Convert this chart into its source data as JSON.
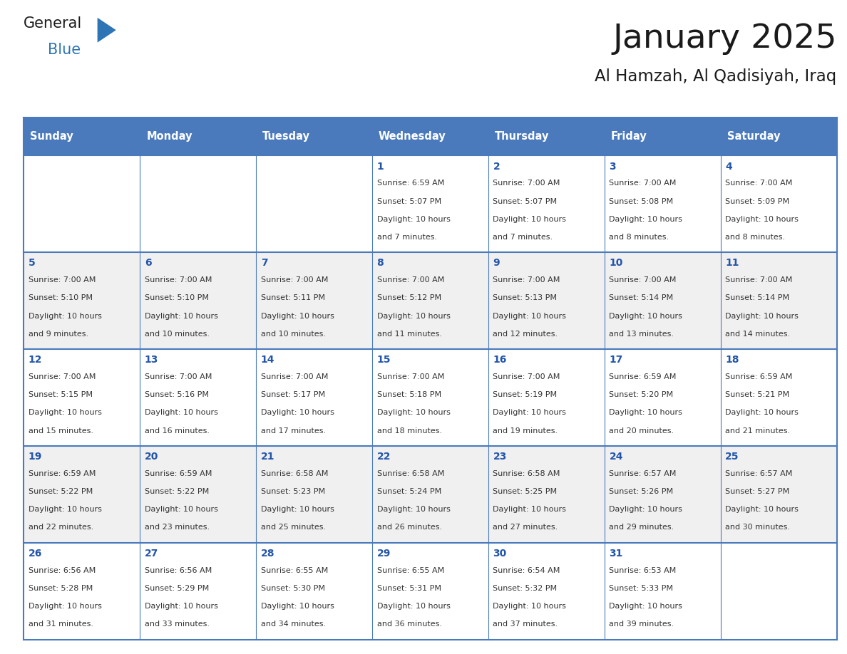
{
  "title": "January 2025",
  "subtitle": "Al Hamzah, Al Qadisiyah, Iraq",
  "header_color": "#4a7abc",
  "header_text_color": "#FFFFFF",
  "cell_bg_row0": "#FFFFFF",
  "cell_bg_row1": "#F0F0F0",
  "day_names": [
    "Sunday",
    "Monday",
    "Tuesday",
    "Wednesday",
    "Thursday",
    "Friday",
    "Saturday"
  ],
  "title_color": "#1a1a1a",
  "subtitle_color": "#1a1a1a",
  "text_color": "#333333",
  "day_num_color": "#2255aa",
  "line_color": "#4a7abc",
  "logo_text_color": "#1a1a1a",
  "logo_blue_color": "#2E75B6",
  "calendar": [
    [
      {
        "day": "",
        "sunrise": "",
        "sunset": "",
        "daylight": ""
      },
      {
        "day": "",
        "sunrise": "",
        "sunset": "",
        "daylight": ""
      },
      {
        "day": "",
        "sunrise": "",
        "sunset": "",
        "daylight": ""
      },
      {
        "day": "1",
        "sunrise": "6:59 AM",
        "sunset": "5:07 PM",
        "daylight": "10 hours\nand 7 minutes."
      },
      {
        "day": "2",
        "sunrise": "7:00 AM",
        "sunset": "5:07 PM",
        "daylight": "10 hours\nand 7 minutes."
      },
      {
        "day": "3",
        "sunrise": "7:00 AM",
        "sunset": "5:08 PM",
        "daylight": "10 hours\nand 8 minutes."
      },
      {
        "day": "4",
        "sunrise": "7:00 AM",
        "sunset": "5:09 PM",
        "daylight": "10 hours\nand 8 minutes."
      }
    ],
    [
      {
        "day": "5",
        "sunrise": "7:00 AM",
        "sunset": "5:10 PM",
        "daylight": "10 hours\nand 9 minutes."
      },
      {
        "day": "6",
        "sunrise": "7:00 AM",
        "sunset": "5:10 PM",
        "daylight": "10 hours\nand 10 minutes."
      },
      {
        "day": "7",
        "sunrise": "7:00 AM",
        "sunset": "5:11 PM",
        "daylight": "10 hours\nand 10 minutes."
      },
      {
        "day": "8",
        "sunrise": "7:00 AM",
        "sunset": "5:12 PM",
        "daylight": "10 hours\nand 11 minutes."
      },
      {
        "day": "9",
        "sunrise": "7:00 AM",
        "sunset": "5:13 PM",
        "daylight": "10 hours\nand 12 minutes."
      },
      {
        "day": "10",
        "sunrise": "7:00 AM",
        "sunset": "5:14 PM",
        "daylight": "10 hours\nand 13 minutes."
      },
      {
        "day": "11",
        "sunrise": "7:00 AM",
        "sunset": "5:14 PM",
        "daylight": "10 hours\nand 14 minutes."
      }
    ],
    [
      {
        "day": "12",
        "sunrise": "7:00 AM",
        "sunset": "5:15 PM",
        "daylight": "10 hours\nand 15 minutes."
      },
      {
        "day": "13",
        "sunrise": "7:00 AM",
        "sunset": "5:16 PM",
        "daylight": "10 hours\nand 16 minutes."
      },
      {
        "day": "14",
        "sunrise": "7:00 AM",
        "sunset": "5:17 PM",
        "daylight": "10 hours\nand 17 minutes."
      },
      {
        "day": "15",
        "sunrise": "7:00 AM",
        "sunset": "5:18 PM",
        "daylight": "10 hours\nand 18 minutes."
      },
      {
        "day": "16",
        "sunrise": "7:00 AM",
        "sunset": "5:19 PM",
        "daylight": "10 hours\nand 19 minutes."
      },
      {
        "day": "17",
        "sunrise": "6:59 AM",
        "sunset": "5:20 PM",
        "daylight": "10 hours\nand 20 minutes."
      },
      {
        "day": "18",
        "sunrise": "6:59 AM",
        "sunset": "5:21 PM",
        "daylight": "10 hours\nand 21 minutes."
      }
    ],
    [
      {
        "day": "19",
        "sunrise": "6:59 AM",
        "sunset": "5:22 PM",
        "daylight": "10 hours\nand 22 minutes."
      },
      {
        "day": "20",
        "sunrise": "6:59 AM",
        "sunset": "5:22 PM",
        "daylight": "10 hours\nand 23 minutes."
      },
      {
        "day": "21",
        "sunrise": "6:58 AM",
        "sunset": "5:23 PM",
        "daylight": "10 hours\nand 25 minutes."
      },
      {
        "day": "22",
        "sunrise": "6:58 AM",
        "sunset": "5:24 PM",
        "daylight": "10 hours\nand 26 minutes."
      },
      {
        "day": "23",
        "sunrise": "6:58 AM",
        "sunset": "5:25 PM",
        "daylight": "10 hours\nand 27 minutes."
      },
      {
        "day": "24",
        "sunrise": "6:57 AM",
        "sunset": "5:26 PM",
        "daylight": "10 hours\nand 29 minutes."
      },
      {
        "day": "25",
        "sunrise": "6:57 AM",
        "sunset": "5:27 PM",
        "daylight": "10 hours\nand 30 minutes."
      }
    ],
    [
      {
        "day": "26",
        "sunrise": "6:56 AM",
        "sunset": "5:28 PM",
        "daylight": "10 hours\nand 31 minutes."
      },
      {
        "day": "27",
        "sunrise": "6:56 AM",
        "sunset": "5:29 PM",
        "daylight": "10 hours\nand 33 minutes."
      },
      {
        "day": "28",
        "sunrise": "6:55 AM",
        "sunset": "5:30 PM",
        "daylight": "10 hours\nand 34 minutes."
      },
      {
        "day": "29",
        "sunrise": "6:55 AM",
        "sunset": "5:31 PM",
        "daylight": "10 hours\nand 36 minutes."
      },
      {
        "day": "30",
        "sunrise": "6:54 AM",
        "sunset": "5:32 PM",
        "daylight": "10 hours\nand 37 minutes."
      },
      {
        "day": "31",
        "sunrise": "6:53 AM",
        "sunset": "5:33 PM",
        "daylight": "10 hours\nand 39 minutes."
      },
      {
        "day": "",
        "sunrise": "",
        "sunset": "",
        "daylight": ""
      }
    ]
  ]
}
